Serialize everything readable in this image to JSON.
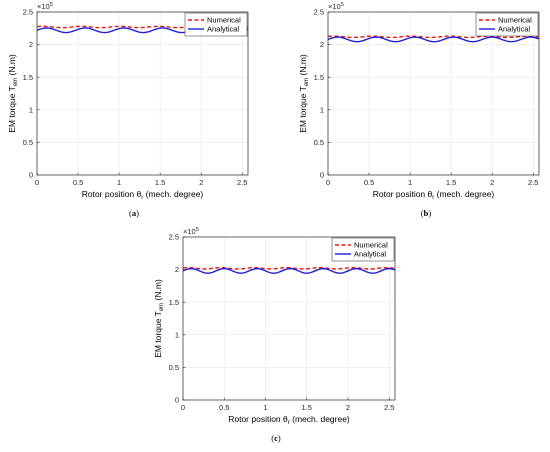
{
  "figure": {
    "subplots": [
      {
        "caption": "(a)"
      },
      {
        "caption": "(b)"
      },
      {
        "caption": "(c)"
      }
    ]
  },
  "chart_data": [
    {
      "type": "line",
      "panel": "(a)",
      "xlabel": "Rotor position θr (mech. degree)",
      "ylabel": "EM torque Tem (N.m)",
      "y_exponent": "×10^5",
      "xlim": [
        0,
        2.57
      ],
      "ylim": [
        0,
        2.5
      ],
      "xticks": [
        "0",
        "0.5",
        "1",
        "1.5",
        "2",
        "2.5"
      ],
      "yticks": [
        "0",
        "0.5",
        "1",
        "1.5",
        "2",
        "2.5"
      ],
      "grid": true,
      "legend": "top-right",
      "series": [
        {
          "name": "Numerical",
          "color": "#e41a1c",
          "style": "dashed",
          "mean": 2.27,
          "amplitude": 0.01,
          "period": 0.47
        },
        {
          "name": "Analytical",
          "color": "#1f1fd6",
          "style": "solid",
          "mean": 2.22,
          "amplitude": 0.035,
          "period": 0.47
        }
      ]
    },
    {
      "type": "line",
      "panel": "(b)",
      "xlabel": "Rotor position θr (mech. degree)",
      "ylabel": "EM torque Tem (N.m)",
      "y_exponent": "×10^5",
      "xlim": [
        0,
        2.57
      ],
      "ylim": [
        0,
        2.5
      ],
      "xticks": [
        "0",
        "0.5",
        "1",
        "1.5",
        "2",
        "2.5"
      ],
      "yticks": [
        "0",
        "0.5",
        "1",
        "1.5",
        "2",
        "2.5"
      ],
      "grid": true,
      "legend": "top-right",
      "series": [
        {
          "name": "Numerical",
          "color": "#e41a1c",
          "style": "dashed",
          "mean": 2.12,
          "amplitude": 0.01,
          "period": 0.47
        },
        {
          "name": "Analytical",
          "color": "#1f1fd6",
          "style": "solid",
          "mean": 2.08,
          "amplitude": 0.035,
          "period": 0.47
        }
      ]
    },
    {
      "type": "line",
      "panel": "(c)",
      "xlabel": "Rotor position θr (mech. degree)",
      "ylabel": "EM torque Tem (N.m)",
      "y_exponent": "×10^5",
      "xlim": [
        0,
        2.57
      ],
      "ylim": [
        0,
        2.5
      ],
      "xticks": [
        "0",
        "0.5",
        "1",
        "1.5",
        "2",
        "2.5"
      ],
      "yticks": [
        "0",
        "0.5",
        "1",
        "1.5",
        "2",
        "2.5"
      ],
      "grid": true,
      "legend": "top-right",
      "series": [
        {
          "name": "Numerical",
          "color": "#e41a1c",
          "style": "dashed",
          "mean": 2.02,
          "amplitude": 0.01,
          "period": 0.4
        },
        {
          "name": "Analytical",
          "color": "#1f1fd6",
          "style": "solid",
          "mean": 1.98,
          "amplitude": 0.035,
          "period": 0.4
        }
      ]
    }
  ]
}
